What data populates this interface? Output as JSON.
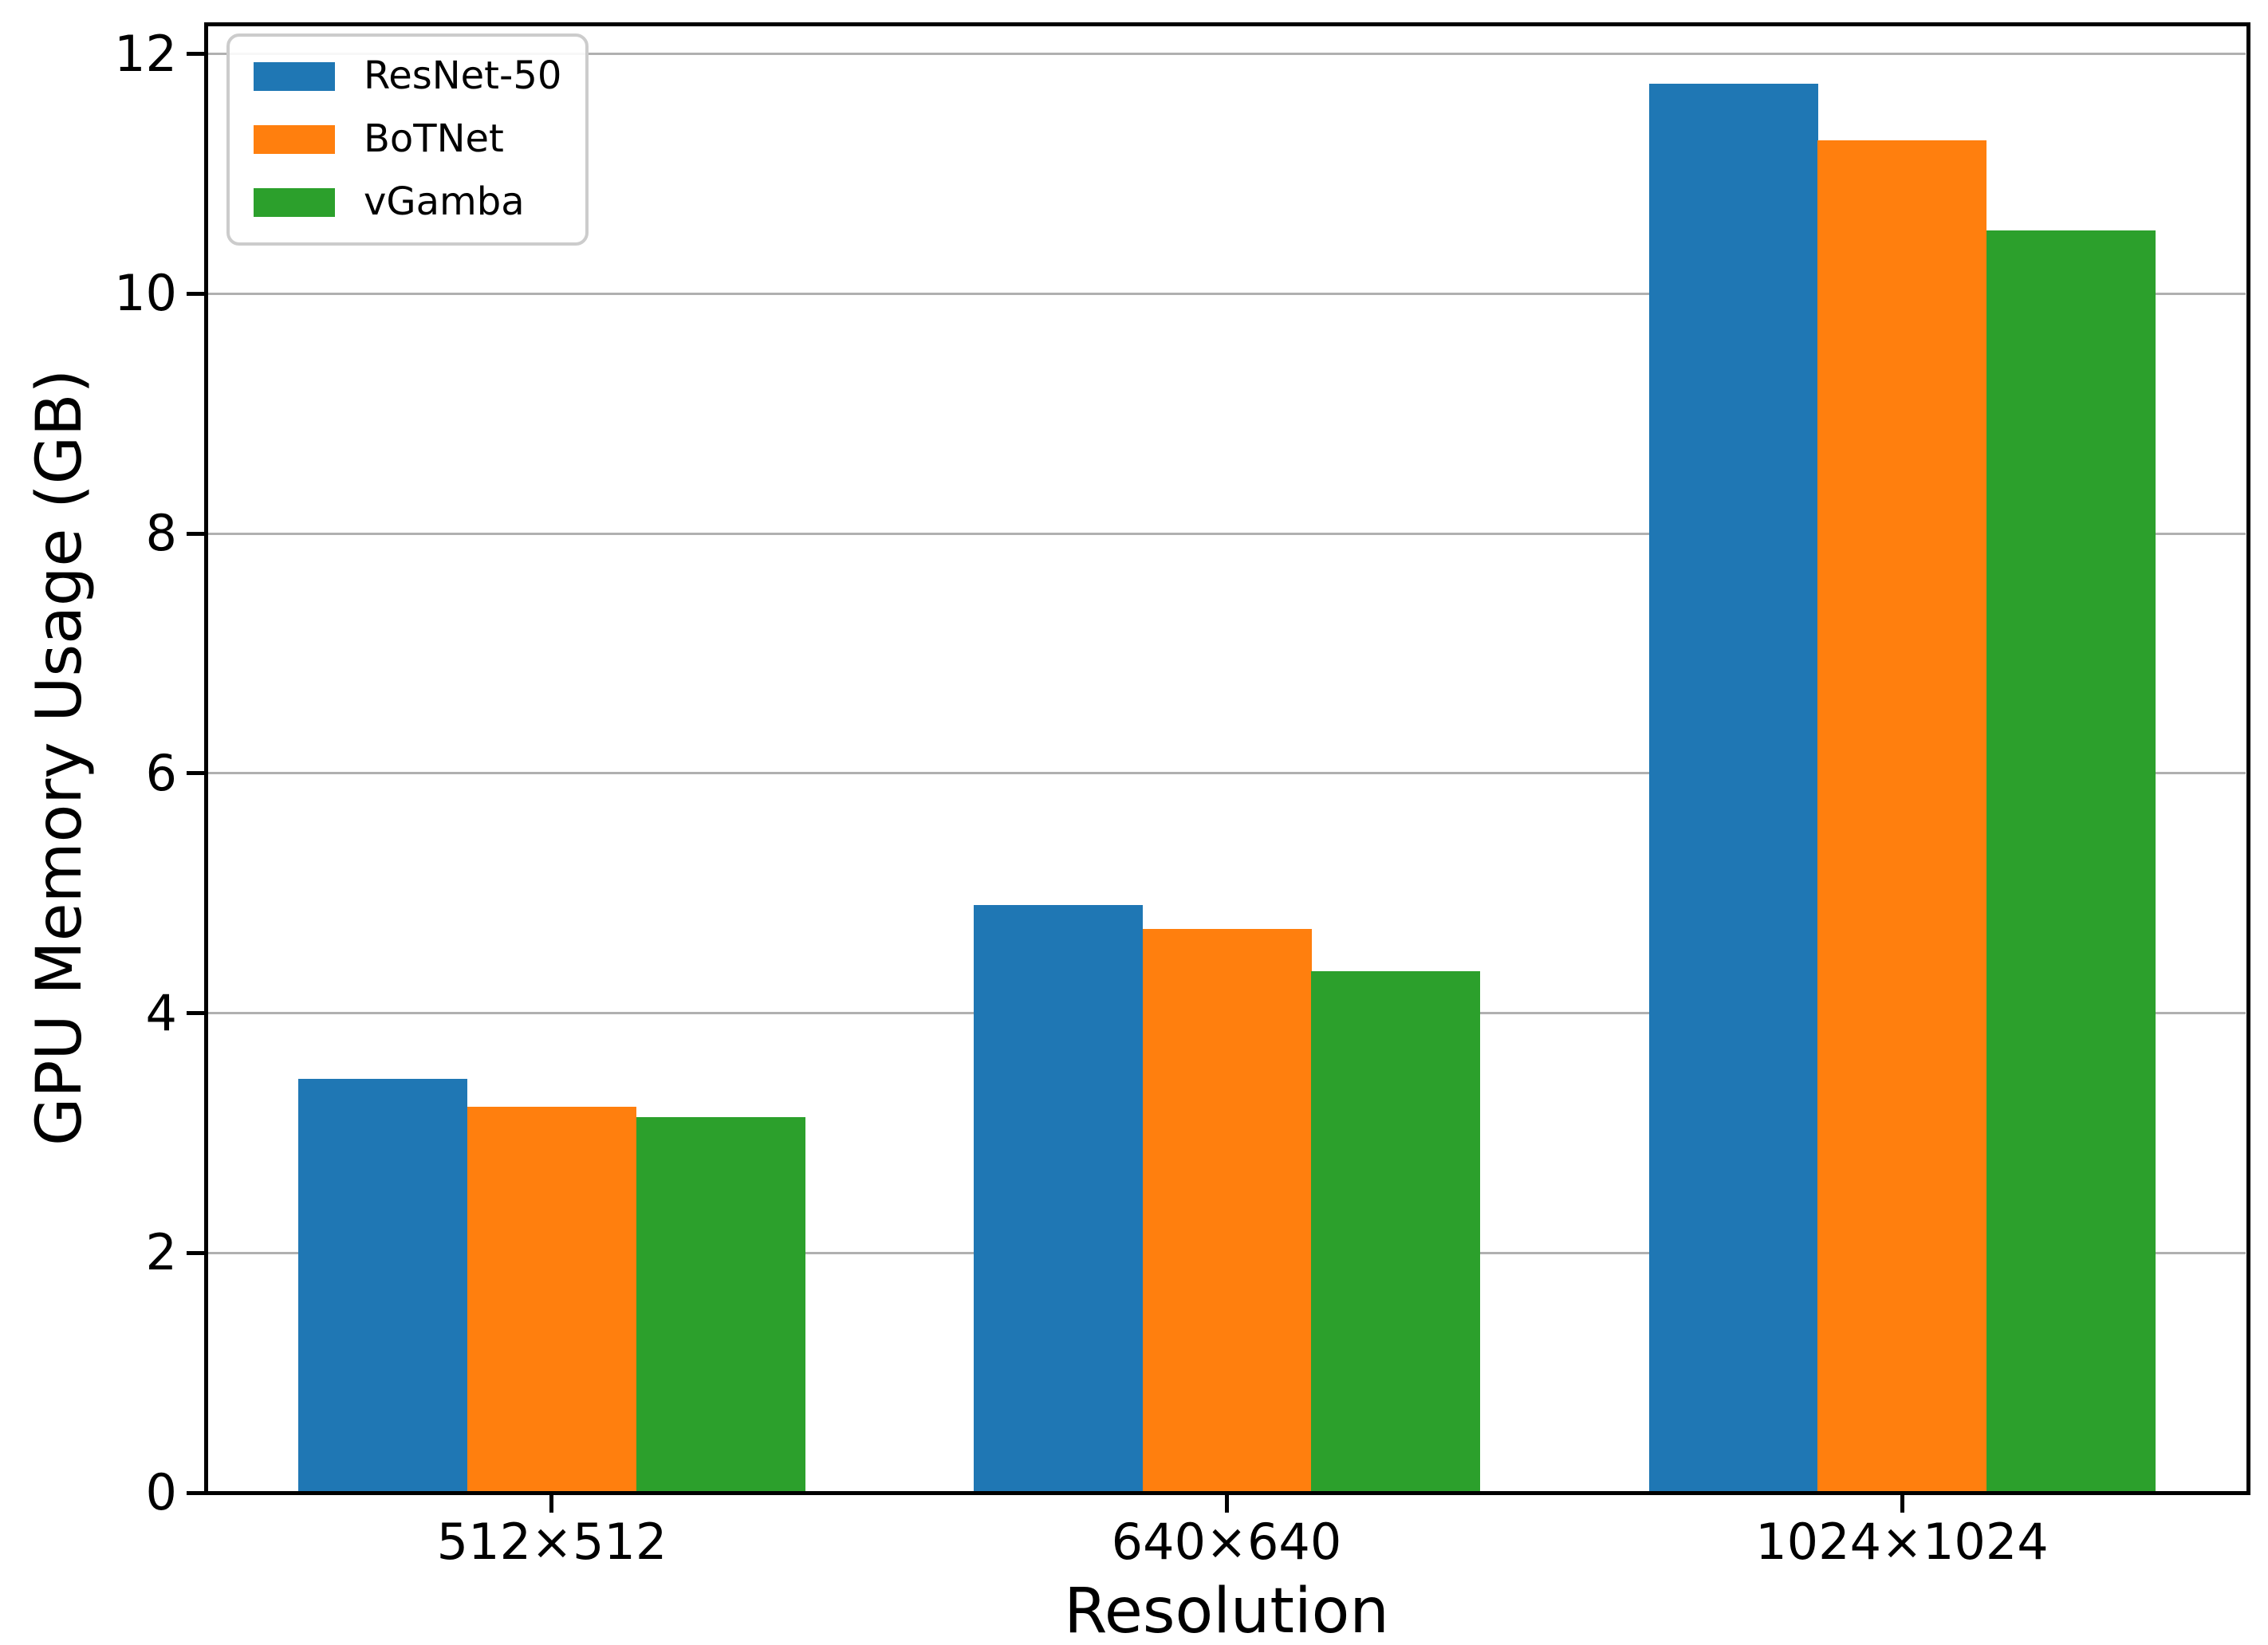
{
  "chart_data": {
    "type": "bar",
    "title": "",
    "categories": [
      "512×512",
      "640×640",
      "1024×1024"
    ],
    "series": [
      {
        "name": "ResNet-50",
        "color": "#1f77b4",
        "values": [
          3.45,
          4.9,
          11.75
        ]
      },
      {
        "name": "BoTNet",
        "color": "#ff7f0e",
        "values": [
          3.22,
          4.7,
          11.28
        ]
      },
      {
        "name": "vGamba",
        "color": "#2ca02c",
        "values": [
          3.13,
          4.35,
          10.53
        ]
      }
    ],
    "xlabel": "Resolution",
    "ylabel": "GPU Memory Usage (GB)",
    "yticks": [
      0,
      2,
      4,
      6,
      8,
      10,
      12
    ],
    "ylim": [
      0,
      12.25
    ],
    "xlim": [
      -0.5125,
      2.5125
    ],
    "bar_width_units": 0.25,
    "grid": true,
    "grid_axis": "y",
    "legend_position": "upper left"
  },
  "colors": {
    "background": "#ffffff",
    "grid": "#b0b0b0",
    "spine": "#000000",
    "tick_text": "#000000",
    "legend_border": "#cccccc"
  }
}
